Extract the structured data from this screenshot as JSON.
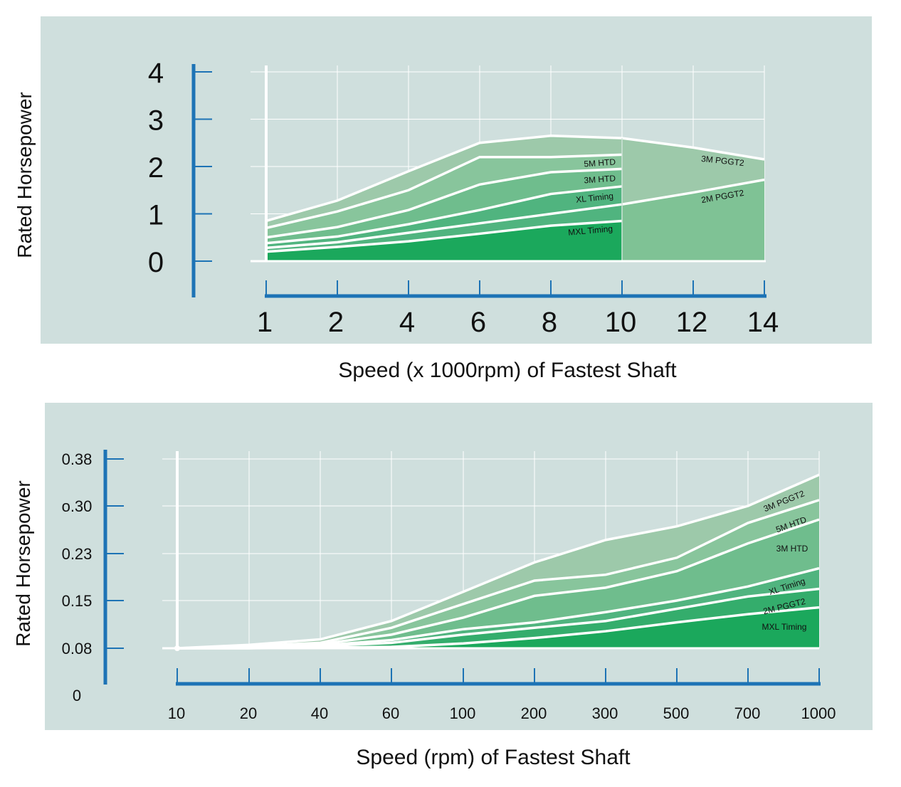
{
  "chart_data": [
    {
      "type": "area",
      "ylabel": "Rated Horsepower",
      "xlabel": "Speed (x 1000rpm) of Fastest Shaft",
      "y_ticks": [
        "0",
        "1",
        "2",
        "3",
        "4"
      ],
      "ylim": [
        0,
        4
      ],
      "categories": [
        "1",
        "2",
        "4",
        "6",
        "8",
        "10",
        "12",
        "14"
      ],
      "grid": true,
      "series": [
        {
          "name": "3M PGGT2",
          "color": "#9dc9aa",
          "values": [
            0.85,
            1.28,
            1.9,
            2.5,
            2.65,
            2.6,
            2.4,
            2.15
          ]
        },
        {
          "name": "5M HTD",
          "color": "#88c59c",
          "values": [
            0.7,
            1.05,
            1.5,
            2.2,
            2.2,
            2.25,
            null,
            null
          ]
        },
        {
          "name": "3M HTD",
          "color": "#6fbd8d",
          "values": [
            0.5,
            0.72,
            1.08,
            1.62,
            1.88,
            1.95,
            null,
            null
          ]
        },
        {
          "name": "2M PGGT2",
          "color": "#7fc295",
          "values": [
            null,
            null,
            null,
            null,
            null,
            1.2,
            1.45,
            1.72
          ]
        },
        {
          "name": "XL Timing",
          "color": "#50b47f",
          "values": [
            0.38,
            0.52,
            0.78,
            1.08,
            1.42,
            1.58,
            null,
            null
          ]
        },
        {
          "name": "MXL Timing",
          "color": "#1ba85c",
          "values": [
            0.2,
            0.3,
            0.42,
            0.58,
            0.75,
            0.85,
            null,
            null
          ]
        }
      ],
      "extra_line": {
        "values": [
          0.28,
          0.4,
          0.6,
          0.8,
          1.0,
          1.2
        ]
      }
    },
    {
      "type": "area",
      "ylabel": "Rated Horsepower",
      "xlabel": "Speed (rpm) of Fastest Shaft",
      "y_ticks": [
        "0",
        "0.08",
        "0.15",
        "0.23",
        "o.30",
        "0.38"
      ],
      "y_tick_values": [
        0,
        0.08,
        0.15,
        0.23,
        0.3,
        0.38
      ],
      "categories": [
        "10",
        "20",
        "40",
        "60",
        "100",
        "200",
        "300",
        "500",
        "700",
        "1000"
      ],
      "grid": true,
      "series": [
        {
          "name": "3M PGGT2",
          "color": "#9dc9aa",
          "values": [
            0.08,
            0.085,
            0.093,
            0.12,
            0.165,
            0.215,
            0.25,
            0.27,
            0.3,
            0.353
          ]
        },
        {
          "name": "5M HTD",
          "color": "#88c59c",
          "values": [
            0.08,
            0.083,
            0.088,
            0.11,
            0.145,
            0.184,
            0.194,
            0.223,
            0.275,
            0.31
          ]
        },
        {
          "name": "3M HTD",
          "color": "#6fbd8d",
          "values": [
            0.08,
            0.082,
            0.086,
            0.1,
            0.125,
            0.158,
            0.172,
            0.2,
            0.245,
            0.28
          ]
        },
        {
          "name": "XL Timing",
          "color": "#50b47f",
          "values": [
            0.08,
            0.081,
            0.084,
            0.092,
            0.108,
            0.118,
            0.133,
            0.15,
            0.174,
            0.205
          ]
        },
        {
          "name": "2M PGGT2",
          "color": "#34ad6c",
          "values": [
            0.08,
            0.08,
            0.083,
            0.088,
            0.1,
            0.11,
            0.12,
            0.138,
            0.157,
            0.17
          ]
        },
        {
          "name": "MXL Timing",
          "color": "#1ba85c",
          "values": [
            0.08,
            0.08,
            0.081,
            0.082,
            0.087,
            0.095,
            0.105,
            0.118,
            0.13,
            0.14
          ]
        }
      ]
    }
  ]
}
